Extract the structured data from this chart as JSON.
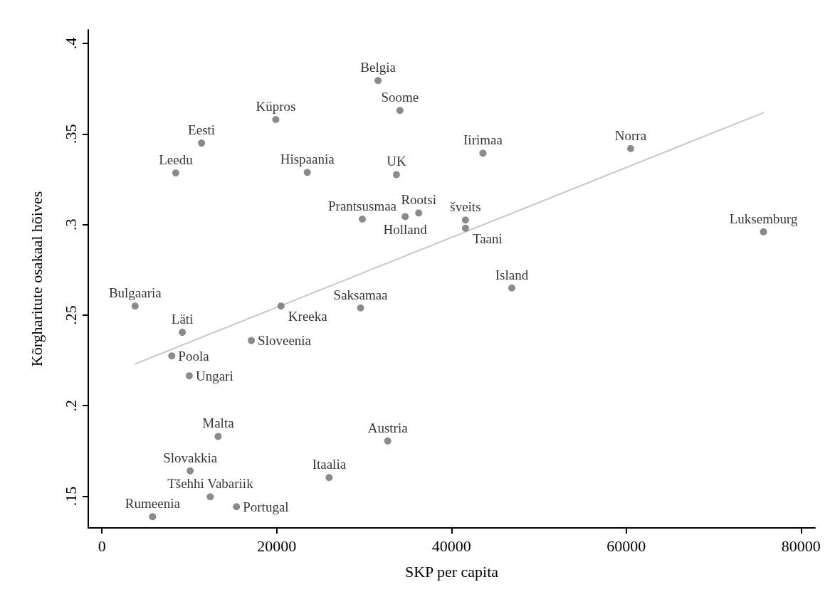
{
  "chart_data": {
    "type": "scatter",
    "xlabel": "SKP per capita",
    "ylabel": "Kõrgharitute osakaal hõives",
    "xlim": [
      -1560,
      81600
    ],
    "ylim": [
      0.1325,
      0.4075
    ],
    "xticks": [
      0,
      20000,
      40000,
      60000,
      80000
    ],
    "yticks": [
      {
        "value": 0.15,
        "label": ".15"
      },
      {
        "value": 0.2,
        "label": ".2"
      },
      {
        "value": 0.25,
        "label": ".25"
      },
      {
        "value": 0.3,
        "label": ".3"
      },
      {
        "value": 0.35,
        "label": ".35"
      },
      {
        "value": 0.4,
        "label": ".4"
      }
    ],
    "grid": false,
    "legend": false,
    "marker": "circle",
    "series": [
      {
        "name": "Belgia",
        "color": "#6e6e6e",
        "x": [
          31600
        ],
        "values": [
          0.3795
        ]
      },
      {
        "name": "Soome",
        "color": "#6e6e6e",
        "x": [
          34100
        ],
        "values": [
          0.363
        ]
      },
      {
        "name": "Küpros",
        "color": "#6e6e6e",
        "x": [
          19900
        ],
        "values": [
          0.358
        ]
      },
      {
        "name": "Eesti",
        "color": "#6e6e6e",
        "x": [
          11400
        ],
        "values": [
          0.345
        ]
      },
      {
        "name": "Leedu",
        "color": "#6e6e6e",
        "x": [
          8450
        ],
        "values": [
          0.3285
        ]
      },
      {
        "name": "Hispaania",
        "color": "#6e6e6e",
        "x": [
          23500
        ],
        "values": [
          0.3288
        ]
      },
      {
        "name": "UK",
        "color": "#6e6e6e",
        "x": [
          33700
        ],
        "values": [
          0.3276
        ]
      },
      {
        "name": "Iirimaa",
        "color": "#6e6e6e",
        "x": [
          43600
        ],
        "values": [
          0.3394
        ]
      },
      {
        "name": "Norra",
        "color": "#6e6e6e",
        "x": [
          60500
        ],
        "values": [
          0.342
        ]
      },
      {
        "name": "Prantsusmaa",
        "color": "#6e6e6e",
        "x": [
          29800
        ],
        "values": [
          0.303
        ]
      },
      {
        "name": "Holland",
        "color": "#6e6e6e",
        "x": [
          34700
        ],
        "values": [
          0.3044
        ]
      },
      {
        "name": "Rootsi",
        "color": "#6e6e6e",
        "x": [
          36250
        ],
        "values": [
          0.3064
        ]
      },
      {
        "name": "šveits",
        "color": "#6e6e6e",
        "x": [
          41600
        ],
        "values": [
          0.3025
        ]
      },
      {
        "name": "Taani",
        "color": "#6e6e6e",
        "x": [
          41600
        ],
        "values": [
          0.298
        ]
      },
      {
        "name": "Luksemburg",
        "color": "#6e6e6e",
        "x": [
          75700
        ],
        "values": [
          0.296
        ]
      },
      {
        "name": "Island",
        "color": "#6e6e6e",
        "x": [
          46900
        ],
        "values": [
          0.265
        ]
      },
      {
        "name": "Bulgaaria",
        "color": "#6e6e6e",
        "x": [
          3800
        ],
        "values": [
          0.255
        ]
      },
      {
        "name": "Kreeka",
        "color": "#6e6e6e",
        "x": [
          20500
        ],
        "values": [
          0.255
        ]
      },
      {
        "name": "Saksamaa",
        "color": "#6e6e6e",
        "x": [
          29600
        ],
        "values": [
          0.254
        ]
      },
      {
        "name": "Läti",
        "color": "#6e6e6e",
        "x": [
          9200
        ],
        "values": [
          0.2405
        ]
      },
      {
        "name": "Sloveenia",
        "color": "#6e6e6e",
        "x": [
          17100
        ],
        "values": [
          0.236
        ]
      },
      {
        "name": "Poola",
        "color": "#6e6e6e",
        "x": [
          8000
        ],
        "values": [
          0.2275
        ]
      },
      {
        "name": "Ungari",
        "color": "#6e6e6e",
        "x": [
          10000
        ],
        "values": [
          0.2165
        ]
      },
      {
        "name": "Malta",
        "color": "#6e6e6e",
        "x": [
          13300
        ],
        "values": [
          0.183
        ]
      },
      {
        "name": "Austria",
        "color": "#6e6e6e",
        "x": [
          32700
        ],
        "values": [
          0.1805
        ]
      },
      {
        "name": "Slovakkia",
        "color": "#6e6e6e",
        "x": [
          10100
        ],
        "values": [
          0.164
        ]
      },
      {
        "name": "Itaalia",
        "color": "#6e6e6e",
        "x": [
          26000
        ],
        "values": [
          0.1603
        ]
      },
      {
        "name": "Tšehhi Vabariik",
        "color": "#6e6e6e",
        "x": [
          12400
        ],
        "values": [
          0.1497
        ]
      },
      {
        "name": "Portugal",
        "color": "#6e6e6e",
        "x": [
          15400
        ],
        "values": [
          0.1442
        ]
      },
      {
        "name": "Rumeenia",
        "color": "#6e6e6e",
        "x": [
          5800
        ],
        "values": [
          0.1387
        ]
      },
      {
        "type": "line",
        "color": "#c8c8c8",
        "marker": "none",
        "x": [
          3800,
          75700
        ],
        "values": [
          0.223,
          0.3618
        ]
      }
    ]
  }
}
